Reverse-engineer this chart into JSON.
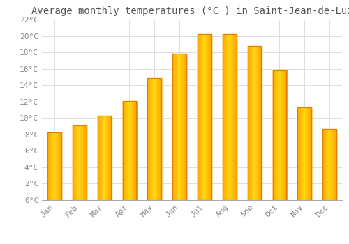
{
  "title": "Average monthly temperatures (°C ) in Saint-Jean-de-Luz",
  "months": [
    "Jan",
    "Feb",
    "Mar",
    "Apr",
    "May",
    "Jun",
    "Jul",
    "Aug",
    "Sep",
    "Oct",
    "Nov",
    "Dec"
  ],
  "temperatures": [
    8.2,
    9.1,
    10.3,
    12.1,
    14.9,
    17.8,
    20.2,
    20.2,
    18.8,
    15.8,
    11.3,
    8.7
  ],
  "bar_color": "#FFA500",
  "bar_edge_color": "#E08000",
  "background_color": "#FFFFFF",
  "grid_color": "#DDDDDD",
  "tick_label_color": "#888888",
  "title_color": "#555555",
  "ylim": [
    0,
    22
  ],
  "yticks": [
    0,
    2,
    4,
    6,
    8,
    10,
    12,
    14,
    16,
    18,
    20,
    22
  ],
  "title_fontsize": 10,
  "tick_fontsize": 8,
  "font_family": "monospace",
  "bar_width": 0.55
}
